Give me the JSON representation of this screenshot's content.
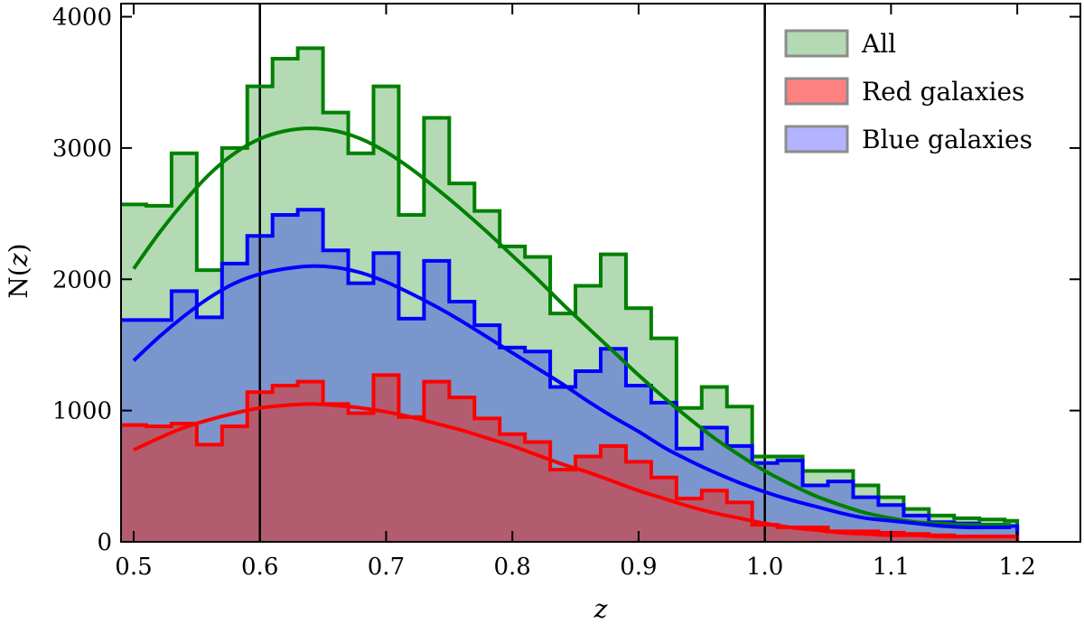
{
  "chart_data": {
    "type": "histogram",
    "xlabel": "z",
    "ylabel_prefix": "N(",
    "ylabel_var": "z",
    "ylabel_suffix": ")",
    "xlim": [
      0.49,
      1.25
    ],
    "ylim": [
      0,
      4100
    ],
    "xticks": [
      0.5,
      0.6,
      0.7,
      0.8,
      0.9,
      1.0,
      1.1,
      1.2
    ],
    "xtick_labels": [
      "0.5",
      "0.6",
      "0.7",
      "0.8",
      "0.9",
      "1.0",
      "1.1",
      "1.2"
    ],
    "yticks": [
      0,
      1000,
      2000,
      3000,
      4000
    ],
    "ytick_labels": [
      "0",
      "1000",
      "2000",
      "3000",
      "4000"
    ],
    "vlines": [
      0.6,
      1.0
    ],
    "legend_position": "top-right",
    "bin_edges": [
      0.49,
      0.51,
      0.53,
      0.55,
      0.57,
      0.59,
      0.61,
      0.63,
      0.65,
      0.67,
      0.69,
      0.71,
      0.73,
      0.75,
      0.77,
      0.79,
      0.81,
      0.83,
      0.85,
      0.87,
      0.89,
      0.91,
      0.93,
      0.95,
      0.97,
      0.99,
      1.01,
      1.03,
      1.05,
      1.07,
      1.09,
      1.11,
      1.13,
      1.15,
      1.17,
      1.19,
      1.2
    ],
    "series": [
      {
        "name": "All",
        "line_color": "#008000",
        "fill_color": "#b3dab3",
        "counts": [
          2570,
          2560,
          2960,
          2070,
          3000,
          3470,
          3680,
          3760,
          3270,
          2960,
          3470,
          2490,
          3230,
          2730,
          2520,
          2250,
          2170,
          1740,
          1950,
          2190,
          1780,
          1550,
          1020,
          1180,
          1030,
          650,
          650,
          540,
          540,
          430,
          340,
          250,
          200,
          180,
          170,
          160
        ],
        "fit": [
          2080,
          2350,
          2590,
          2800,
          2960,
          3070,
          3130,
          3150,
          3130,
          3070,
          2970,
          2840,
          2690,
          2530,
          2360,
          2180,
          2000,
          1810,
          1630,
          1450,
          1270,
          1100,
          940,
          790,
          660,
          540,
          440,
          350,
          280,
          220,
          180,
          150,
          140,
          130,
          130,
          130
        ]
      },
      {
        "name": "Red galaxies",
        "line_color": "#ff0000",
        "fill_color": "#b35c70",
        "counts": [
          890,
          880,
          900,
          740,
          880,
          1140,
          1190,
          1220,
          1050,
          980,
          1270,
          950,
          1220,
          1100,
          940,
          820,
          760,
          550,
          650,
          730,
          610,
          490,
          330,
          390,
          300,
          130,
          110,
          110,
          80,
          80,
          70,
          60,
          50,
          40,
          40,
          40
        ],
        "fit": [
          700,
          790,
          870,
          930,
          980,
          1020,
          1040,
          1050,
          1040,
          1020,
          990,
          950,
          900,
          850,
          790,
          730,
          660,
          590,
          530,
          460,
          390,
          330,
          270,
          220,
          180,
          140,
          110,
          90,
          70,
          60,
          50,
          50,
          40,
          40,
          40,
          40
        ]
      },
      {
        "name": "Blue galaxies",
        "line_color": "#0000ff",
        "fill_color": "#7a96cc",
        "counts": [
          1690,
          1690,
          1910,
          1710,
          2120,
          2330,
          2490,
          2530,
          2220,
          1970,
          2200,
          1700,
          2140,
          1830,
          1650,
          1480,
          1450,
          1180,
          1300,
          1470,
          1190,
          1060,
          710,
          870,
          730,
          600,
          620,
          430,
          460,
          340,
          280,
          200,
          150,
          140,
          130,
          120
        ],
        "fit": [
          1380,
          1560,
          1720,
          1860,
          1970,
          2040,
          2080,
          2100,
          2090,
          2050,
          1980,
          1890,
          1790,
          1680,
          1560,
          1440,
          1320,
          1200,
          1070,
          950,
          840,
          720,
          620,
          530,
          450,
          380,
          320,
          270,
          220,
          180,
          160,
          140,
          120,
          110,
          110,
          110
        ]
      }
    ],
    "draw_order": [
      "All",
      "Blue galaxies",
      "Red galaxies"
    ],
    "legend_order": [
      "All",
      "Red galaxies",
      "Blue galaxies"
    ],
    "legend_swatches": {
      "All": "#b3dab3",
      "Red galaxies": "#ff8080",
      "Blue galaxies": "#b3b3ff"
    }
  }
}
